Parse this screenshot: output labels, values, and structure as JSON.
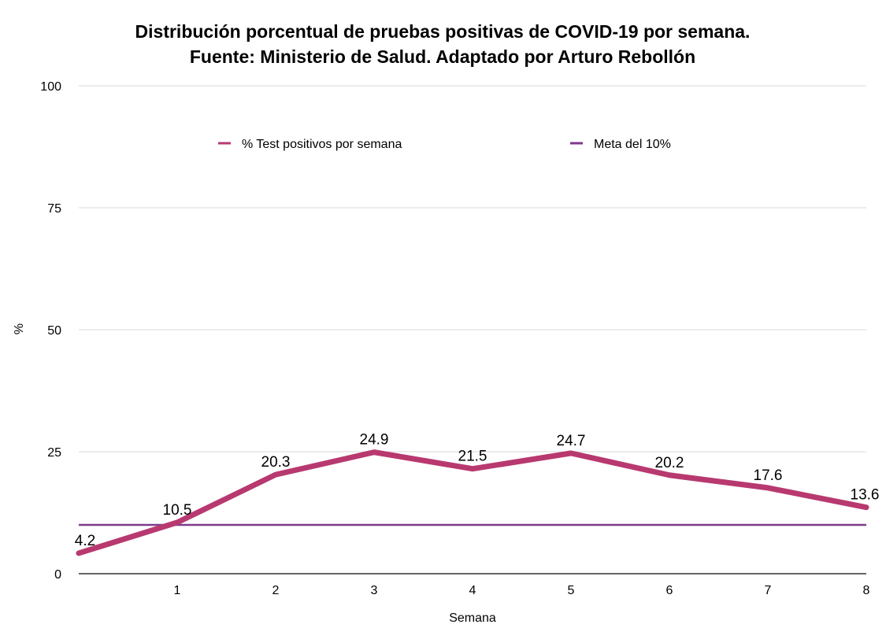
{
  "chart_data": {
    "type": "line",
    "title_lines": [
      "Distribución porcentual de pruebas positivas de COVID-19 por semana.",
      "Fuente: Ministerio de Salud. Adaptado por Arturo Rebollón"
    ],
    "xlabel": "Semana",
    "ylabel": "%",
    "ylim": [
      0,
      100
    ],
    "y_ticks": [
      0,
      25,
      50,
      75,
      100
    ],
    "x_ticks": [
      1,
      2,
      3,
      4,
      5,
      6,
      7,
      8
    ],
    "xlim": [
      0,
      8
    ],
    "grid": true,
    "legend_position": "top",
    "series": [
      {
        "name": "% Test positivos por semana",
        "color": "#b8396f",
        "x": [
          0,
          1,
          2,
          3,
          4,
          5,
          6,
          7,
          8
        ],
        "values": [
          4.2,
          10.5,
          20.3,
          24.9,
          21.5,
          24.7,
          20.2,
          17.6,
          13.6
        ],
        "labels": [
          "4.2",
          "10.5",
          "20.3",
          "24.9",
          "21.5",
          "24.7",
          "20.2",
          "17.6",
          "13.6"
        ]
      },
      {
        "name": "Meta del 10%",
        "color": "#7d3a8c",
        "x": [
          0,
          8
        ],
        "values": [
          10,
          10
        ]
      }
    ]
  }
}
